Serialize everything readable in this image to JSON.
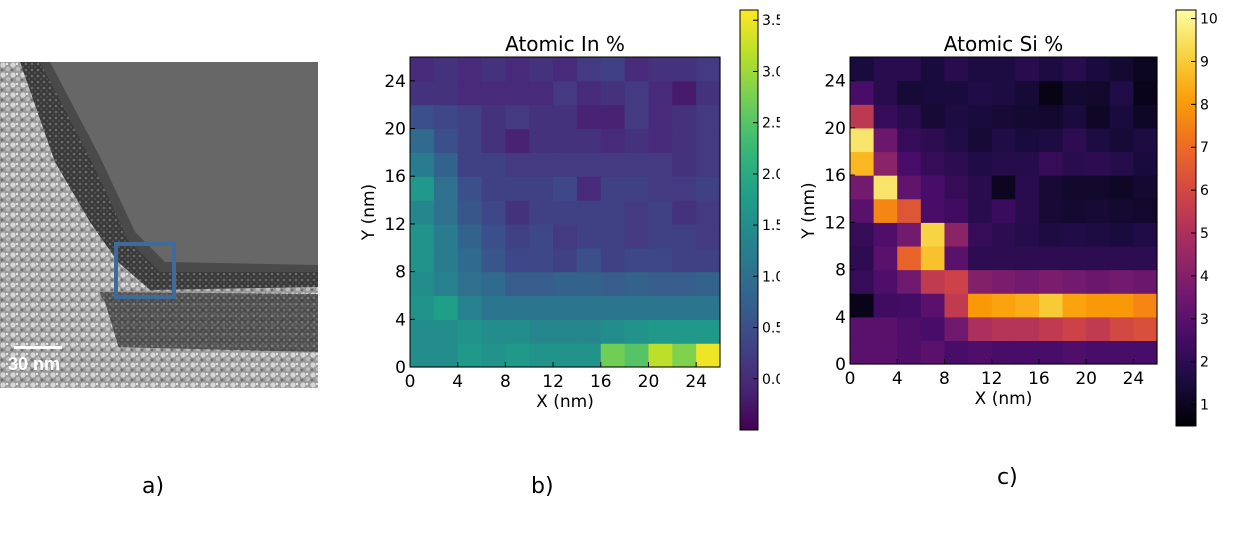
{
  "panel_a": {
    "label": "a)",
    "scale_bar": "30 nm",
    "box_color": "#3f6b9c"
  },
  "panel_b": {
    "label": "b)"
  },
  "panel_c": {
    "label": "c)"
  },
  "chart_data": [
    {
      "type": "heatmap",
      "title": "Atomic In %",
      "xlabel": "X (nm)",
      "ylabel": "Y (nm)",
      "xlim": [
        0,
        26
      ],
      "ylim": [
        0,
        26
      ],
      "x_ticks": [
        "0",
        "4",
        "8",
        "12",
        "16",
        "20",
        "24"
      ],
      "y_ticks": [
        "0",
        "4",
        "8",
        "12",
        "16",
        "20",
        "24"
      ],
      "colormap": "viridis",
      "colorbar_range": [
        -0.5,
        3.6
      ],
      "colorbar_ticks": [
        "0.0",
        "0.5",
        "1.0",
        "1.5",
        "2.0",
        "2.5",
        "3.0",
        "3.5"
      ],
      "grid_size": [
        13,
        13
      ],
      "rows_bottom_to_top": [
        [
          1.5,
          1.5,
          1.7,
          1.6,
          1.7,
          1.6,
          1.6,
          1.6,
          2.7,
          2.5,
          3.2,
          2.8,
          3.5
        ],
        [
          1.5,
          1.5,
          1.6,
          1.5,
          1.5,
          1.4,
          1.4,
          1.4,
          1.5,
          1.6,
          1.7,
          1.7,
          1.7
        ],
        [
          1.6,
          1.8,
          1.3,
          1.1,
          1.1,
          1.1,
          1.1,
          1.1,
          1.1,
          1.1,
          1.1,
          1.1,
          1.1
        ],
        [
          1.5,
          1.3,
          1.0,
          0.9,
          0.7,
          0.7,
          0.8,
          0.8,
          0.7,
          0.8,
          0.7,
          0.7,
          0.8
        ],
        [
          1.6,
          1.2,
          0.9,
          0.6,
          0.4,
          0.4,
          0.3,
          0.5,
          0.3,
          0.4,
          0.4,
          0.3,
          0.3
        ],
        [
          1.6,
          1.2,
          0.8,
          0.5,
          0.3,
          0.4,
          0.2,
          0.3,
          0.3,
          0.2,
          0.3,
          0.3,
          0.2
        ],
        [
          1.4,
          1.0,
          0.6,
          0.4,
          0.1,
          0.3,
          0.3,
          0.3,
          0.3,
          0.2,
          0.3,
          0.1,
          0.2
        ],
        [
          1.7,
          1.0,
          0.5,
          0.3,
          0.3,
          0.3,
          0.4,
          0.0,
          0.3,
          0.3,
          0.2,
          0.2,
          0.3
        ],
        [
          1.2,
          0.8,
          0.3,
          0.3,
          0.2,
          0.2,
          0.2,
          0.2,
          0.2,
          0.2,
          0.2,
          0.1,
          0.2
        ],
        [
          0.9,
          0.5,
          0.3,
          0.1,
          -0.1,
          0.1,
          0.1,
          0.1,
          0.0,
          0.1,
          0.0,
          0.1,
          0.2
        ],
        [
          0.5,
          0.4,
          0.3,
          0.1,
          0.2,
          0.1,
          0.1,
          -0.1,
          -0.1,
          0.2,
          0.0,
          0.1,
          0.2
        ],
        [
          0.1,
          0.1,
          0.0,
          0.0,
          0.0,
          0.0,
          0.2,
          0.0,
          0.1,
          0.2,
          0.0,
          -0.2,
          0.1
        ],
        [
          0.0,
          0.1,
          0.0,
          0.1,
          0.0,
          0.1,
          0.0,
          0.2,
          0.3,
          0.0,
          0.1,
          0.1,
          0.2
        ]
      ]
    },
    {
      "type": "heatmap",
      "title": "Atomic Si %",
      "xlabel": "X (nm)",
      "ylabel": "Y (nm)",
      "xlim": [
        0,
        26
      ],
      "ylim": [
        0,
        26
      ],
      "x_ticks": [
        "0",
        "4",
        "8",
        "12",
        "16",
        "20",
        "24"
      ],
      "y_ticks": [
        "0",
        "4",
        "8",
        "12",
        "16",
        "20",
        "24"
      ],
      "colormap": "inferno",
      "colorbar_range": [
        0.5,
        10.2
      ],
      "colorbar_ticks": [
        "1",
        "2",
        "3",
        "4",
        "5",
        "6",
        "7",
        "8",
        "9",
        "10"
      ],
      "grid_size": [
        13,
        13
      ],
      "rows_bottom_to_top": [
        [
          3.0,
          3.0,
          2.8,
          3.0,
          2.6,
          2.8,
          2.6,
          2.6,
          2.6,
          2.8,
          2.6,
          2.6,
          2.6
        ],
        [
          3.0,
          3.0,
          2.8,
          2.6,
          3.5,
          5.0,
          5.2,
          5.2,
          5.5,
          5.8,
          5.5,
          6.0,
          6.2
        ],
        [
          0.9,
          2.4,
          2.5,
          3.0,
          5.5,
          8.0,
          8.2,
          8.4,
          9.0,
          8.2,
          8.0,
          8.0,
          7.6
        ],
        [
          2.2,
          2.8,
          3.5,
          5.5,
          5.8,
          4.0,
          3.8,
          3.6,
          3.8,
          3.6,
          3.4,
          3.6,
          3.4
        ],
        [
          2.0,
          3.0,
          6.8,
          8.8,
          3.0,
          2.0,
          2.0,
          2.0,
          2.0,
          2.0,
          2.0,
          2.0,
          2.0
        ],
        [
          2.2,
          2.8,
          3.6,
          9.2,
          4.2,
          2.2,
          2.0,
          1.8,
          1.6,
          1.7,
          1.6,
          1.5,
          1.7
        ],
        [
          3.0,
          7.6,
          6.4,
          2.6,
          2.4,
          1.9,
          2.3,
          1.9,
          1.4,
          1.3,
          1.4,
          1.3,
          1.2
        ],
        [
          3.6,
          9.6,
          3.2,
          2.6,
          2.2,
          1.9,
          1.0,
          1.9,
          1.4,
          1.2,
          1.2,
          1.1,
          1.3
        ],
        [
          8.6,
          4.2,
          2.6,
          2.2,
          2.0,
          1.7,
          1.8,
          1.8,
          2.2,
          1.9,
          2.0,
          1.8,
          1.5
        ],
        [
          9.6,
          3.4,
          2.2,
          2.0,
          1.7,
          1.4,
          1.7,
          1.5,
          1.6,
          2.0,
          1.6,
          1.4,
          1.6
        ],
        [
          5.4,
          2.2,
          1.9,
          1.4,
          1.6,
          1.5,
          1.4,
          1.3,
          1.2,
          1.5,
          1.1,
          1.5,
          1.1
        ],
        [
          2.6,
          1.9,
          1.4,
          1.5,
          1.5,
          1.7,
          1.6,
          1.4,
          0.8,
          1.3,
          1.2,
          1.7,
          0.9
        ],
        [
          1.5,
          1.9,
          1.9,
          1.5,
          1.9,
          1.6,
          1.6,
          1.9,
          1.6,
          1.9,
          1.5,
          1.3,
          1.0
        ]
      ]
    }
  ]
}
